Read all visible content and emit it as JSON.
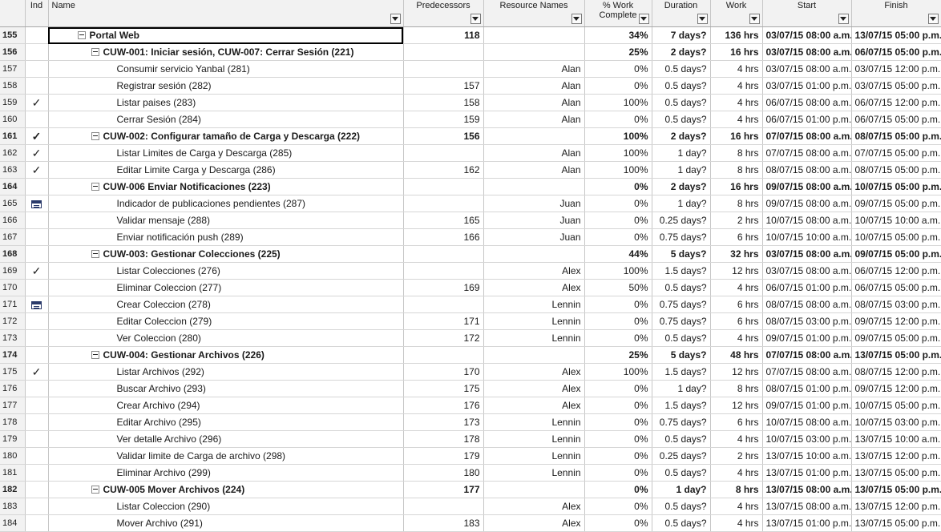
{
  "columns": {
    "ind": "Ind",
    "name": "Name",
    "pred": "Predecessors",
    "res": "Resource Names",
    "pct_l1": "% Work",
    "pct_l2": "Complete",
    "dur": "Duration",
    "work": "Work",
    "start": "Start",
    "finish": "Finish"
  },
  "rows": [
    {
      "id": "155",
      "ind": "",
      "level": 0,
      "summary": true,
      "name": "Portal Web",
      "pred": "118",
      "res": "",
      "pct": "34%",
      "dur": "7 days?",
      "work": "136 hrs",
      "start": "03/07/15 08:00 a.m.",
      "finish": "13/07/15 05:00 p.m."
    },
    {
      "id": "156",
      "ind": "",
      "level": 1,
      "summary": true,
      "name": "CUW-001: Iniciar sesión, CUW-007: Cerrar Sesión (221)",
      "pred": "",
      "res": "",
      "pct": "25%",
      "dur": "2 days?",
      "work": "16 hrs",
      "start": "03/07/15 08:00 a.m.",
      "finish": "06/07/15 05:00 p.m."
    },
    {
      "id": "157",
      "ind": "",
      "level": 2,
      "summary": false,
      "name": "Consumir servicio Yanbal (281)",
      "pred": "",
      "res": "Alan",
      "pct": "0%",
      "dur": "0.5 days?",
      "work": "4 hrs",
      "start": "03/07/15 08:00 a.m.",
      "finish": "03/07/15 12:00 p.m."
    },
    {
      "id": "158",
      "ind": "",
      "level": 2,
      "summary": false,
      "name": "Registrar sesión (282)",
      "pred": "157",
      "res": "Alan",
      "pct": "0%",
      "dur": "0.5 days?",
      "work": "4 hrs",
      "start": "03/07/15 01:00 p.m.",
      "finish": "03/07/15 05:00 p.m."
    },
    {
      "id": "159",
      "ind": "check",
      "level": 2,
      "summary": false,
      "name": "Listar paises (283)",
      "pred": "158",
      "res": "Alan",
      "pct": "100%",
      "dur": "0.5 days?",
      "work": "4 hrs",
      "start": "06/07/15 08:00 a.m.",
      "finish": "06/07/15 12:00 p.m."
    },
    {
      "id": "160",
      "ind": "",
      "level": 2,
      "summary": false,
      "name": "Cerrar Sesión (284)",
      "pred": "159",
      "res": "Alan",
      "pct": "0%",
      "dur": "0.5 days?",
      "work": "4 hrs",
      "start": "06/07/15 01:00 p.m.",
      "finish": "06/07/15 05:00 p.m."
    },
    {
      "id": "161",
      "ind": "check",
      "level": 1,
      "summary": true,
      "name": "CUW-002: Configurar tamaño de Carga y Descarga (222)",
      "pred": "156",
      "res": "",
      "pct": "100%",
      "dur": "2 days?",
      "work": "16 hrs",
      "start": "07/07/15 08:00 a.m.",
      "finish": "08/07/15 05:00 p.m."
    },
    {
      "id": "162",
      "ind": "check",
      "level": 2,
      "summary": false,
      "name": "Listar Limites de Carga y Descarga (285)",
      "pred": "",
      "res": "Alan",
      "pct": "100%",
      "dur": "1 day?",
      "work": "8 hrs",
      "start": "07/07/15 08:00 a.m.",
      "finish": "07/07/15 05:00 p.m."
    },
    {
      "id": "163",
      "ind": "check",
      "level": 2,
      "summary": false,
      "name": "Editar Limite Carga y Descarga (286)",
      "pred": "162",
      "res": "Alan",
      "pct": "100%",
      "dur": "1 day?",
      "work": "8 hrs",
      "start": "08/07/15 08:00 a.m.",
      "finish": "08/07/15 05:00 p.m."
    },
    {
      "id": "164",
      "ind": "",
      "level": 1,
      "summary": true,
      "name": "CUW-006 Enviar Notificaciones (223)",
      "pred": "",
      "res": "",
      "pct": "0%",
      "dur": "2 days?",
      "work": "16 hrs",
      "start": "09/07/15 08:00 a.m.",
      "finish": "10/07/15 05:00 p.m."
    },
    {
      "id": "165",
      "ind": "cal",
      "level": 2,
      "summary": false,
      "name": "Indicador de publicaciones pendientes (287)",
      "pred": "",
      "res": "Juan",
      "pct": "0%",
      "dur": "1 day?",
      "work": "8 hrs",
      "start": "09/07/15 08:00 a.m.",
      "finish": "09/07/15 05:00 p.m."
    },
    {
      "id": "166",
      "ind": "",
      "level": 2,
      "summary": false,
      "name": "Validar mensaje (288)",
      "pred": "165",
      "res": "Juan",
      "pct": "0%",
      "dur": "0.25 days?",
      "work": "2 hrs",
      "start": "10/07/15 08:00 a.m.",
      "finish": "10/07/15 10:00 a.m."
    },
    {
      "id": "167",
      "ind": "",
      "level": 2,
      "summary": false,
      "name": "Enviar notificación push (289)",
      "pred": "166",
      "res": "Juan",
      "pct": "0%",
      "dur": "0.75 days?",
      "work": "6 hrs",
      "start": "10/07/15 10:00 a.m.",
      "finish": "10/07/15 05:00 p.m."
    },
    {
      "id": "168",
      "ind": "",
      "level": 1,
      "summary": true,
      "name": "CUW-003: Gestionar Colecciones (225)",
      "pred": "",
      "res": "",
      "pct": "44%",
      "dur": "5 days?",
      "work": "32 hrs",
      "start": "03/07/15 08:00 a.m.",
      "finish": "09/07/15 05:00 p.m."
    },
    {
      "id": "169",
      "ind": "check",
      "level": 2,
      "summary": false,
      "name": "Listar Colecciones (276)",
      "pred": "",
      "res": "Alex",
      "pct": "100%",
      "dur": "1.5 days?",
      "work": "12 hrs",
      "start": "03/07/15 08:00 a.m.",
      "finish": "06/07/15 12:00 p.m."
    },
    {
      "id": "170",
      "ind": "",
      "level": 2,
      "summary": false,
      "name": "Eliminar Coleccion (277)",
      "pred": "169",
      "res": "Alex",
      "pct": "50%",
      "dur": "0.5 days?",
      "work": "4 hrs",
      "start": "06/07/15 01:00 p.m.",
      "finish": "06/07/15 05:00 p.m."
    },
    {
      "id": "171",
      "ind": "cal",
      "level": 2,
      "summary": false,
      "name": "Crear Coleccion (278)",
      "pred": "",
      "res": "Lennin",
      "pct": "0%",
      "dur": "0.75 days?",
      "work": "6 hrs",
      "start": "08/07/15 08:00 a.m.",
      "finish": "08/07/15 03:00 p.m."
    },
    {
      "id": "172",
      "ind": "",
      "level": 2,
      "summary": false,
      "name": "Editar Coleccion (279)",
      "pred": "171",
      "res": "Lennin",
      "pct": "0%",
      "dur": "0.75 days?",
      "work": "6 hrs",
      "start": "08/07/15 03:00 p.m.",
      "finish": "09/07/15 12:00 p.m."
    },
    {
      "id": "173",
      "ind": "",
      "level": 2,
      "summary": false,
      "name": "Ver Coleccion (280)",
      "pred": "172",
      "res": "Lennin",
      "pct": "0%",
      "dur": "0.5 days?",
      "work": "4 hrs",
      "start": "09/07/15 01:00 p.m.",
      "finish": "09/07/15 05:00 p.m."
    },
    {
      "id": "174",
      "ind": "",
      "level": 1,
      "summary": true,
      "name": "CUW-004: Gestionar Archivos (226)",
      "pred": "",
      "res": "",
      "pct": "25%",
      "dur": "5 days?",
      "work": "48 hrs",
      "start": "07/07/15 08:00 a.m.",
      "finish": "13/07/15 05:00 p.m."
    },
    {
      "id": "175",
      "ind": "check",
      "level": 2,
      "summary": false,
      "name": "Listar Archivos (292)",
      "pred": "170",
      "res": "Alex",
      "pct": "100%",
      "dur": "1.5 days?",
      "work": "12 hrs",
      "start": "07/07/15 08:00 a.m.",
      "finish": "08/07/15 12:00 p.m."
    },
    {
      "id": "176",
      "ind": "",
      "level": 2,
      "summary": false,
      "name": "Buscar Archivo (293)",
      "pred": "175",
      "res": "Alex",
      "pct": "0%",
      "dur": "1 day?",
      "work": "8 hrs",
      "start": "08/07/15 01:00 p.m.",
      "finish": "09/07/15 12:00 p.m."
    },
    {
      "id": "177",
      "ind": "",
      "level": 2,
      "summary": false,
      "name": "Crear Archivo (294)",
      "pred": "176",
      "res": "Alex",
      "pct": "0%",
      "dur": "1.5 days?",
      "work": "12 hrs",
      "start": "09/07/15 01:00 p.m.",
      "finish": "10/07/15 05:00 p.m."
    },
    {
      "id": "178",
      "ind": "",
      "level": 2,
      "summary": false,
      "name": "Editar Archivo (295)",
      "pred": "173",
      "res": "Lennin",
      "pct": "0%",
      "dur": "0.75 days?",
      "work": "6 hrs",
      "start": "10/07/15 08:00 a.m.",
      "finish": "10/07/15 03:00 p.m."
    },
    {
      "id": "179",
      "ind": "",
      "level": 2,
      "summary": false,
      "name": "Ver detalle Archivo (296)",
      "pred": "178",
      "res": "Lennin",
      "pct": "0%",
      "dur": "0.5 days?",
      "work": "4 hrs",
      "start": "10/07/15 03:00 p.m.",
      "finish": "13/07/15 10:00 a.m."
    },
    {
      "id": "180",
      "ind": "",
      "level": 2,
      "summary": false,
      "name": "Validar limite de Carga de archivo (298)",
      "pred": "179",
      "res": "Lennin",
      "pct": "0%",
      "dur": "0.25 days?",
      "work": "2 hrs",
      "start": "13/07/15 10:00 a.m.",
      "finish": "13/07/15 12:00 p.m."
    },
    {
      "id": "181",
      "ind": "",
      "level": 2,
      "summary": false,
      "name": "Eliminar Archivo (299)",
      "pred": "180",
      "res": "Lennin",
      "pct": "0%",
      "dur": "0.5 days?",
      "work": "4 hrs",
      "start": "13/07/15 01:00 p.m.",
      "finish": "13/07/15 05:00 p.m."
    },
    {
      "id": "182",
      "ind": "",
      "level": 1,
      "summary": true,
      "name": "CUW-005 Mover Archivos (224)",
      "pred": "177",
      "res": "",
      "pct": "0%",
      "dur": "1 day?",
      "work": "8 hrs",
      "start": "13/07/15 08:00 a.m.",
      "finish": "13/07/15 05:00 p.m."
    },
    {
      "id": "183",
      "ind": "",
      "level": 2,
      "summary": false,
      "name": "Listar Coleccion (290)",
      "pred": "",
      "res": "Alex",
      "pct": "0%",
      "dur": "0.5 days?",
      "work": "4 hrs",
      "start": "13/07/15 08:00 a.m.",
      "finish": "13/07/15 12:00 p.m."
    },
    {
      "id": "184",
      "ind": "",
      "level": 2,
      "summary": false,
      "name": "Mover Archivo (291)",
      "pred": "183",
      "res": "Alex",
      "pct": "0%",
      "dur": "0.5 days?",
      "work": "4 hrs",
      "start": "13/07/15 01:00 p.m.",
      "finish": "13/07/15 05:00 p.m."
    }
  ]
}
